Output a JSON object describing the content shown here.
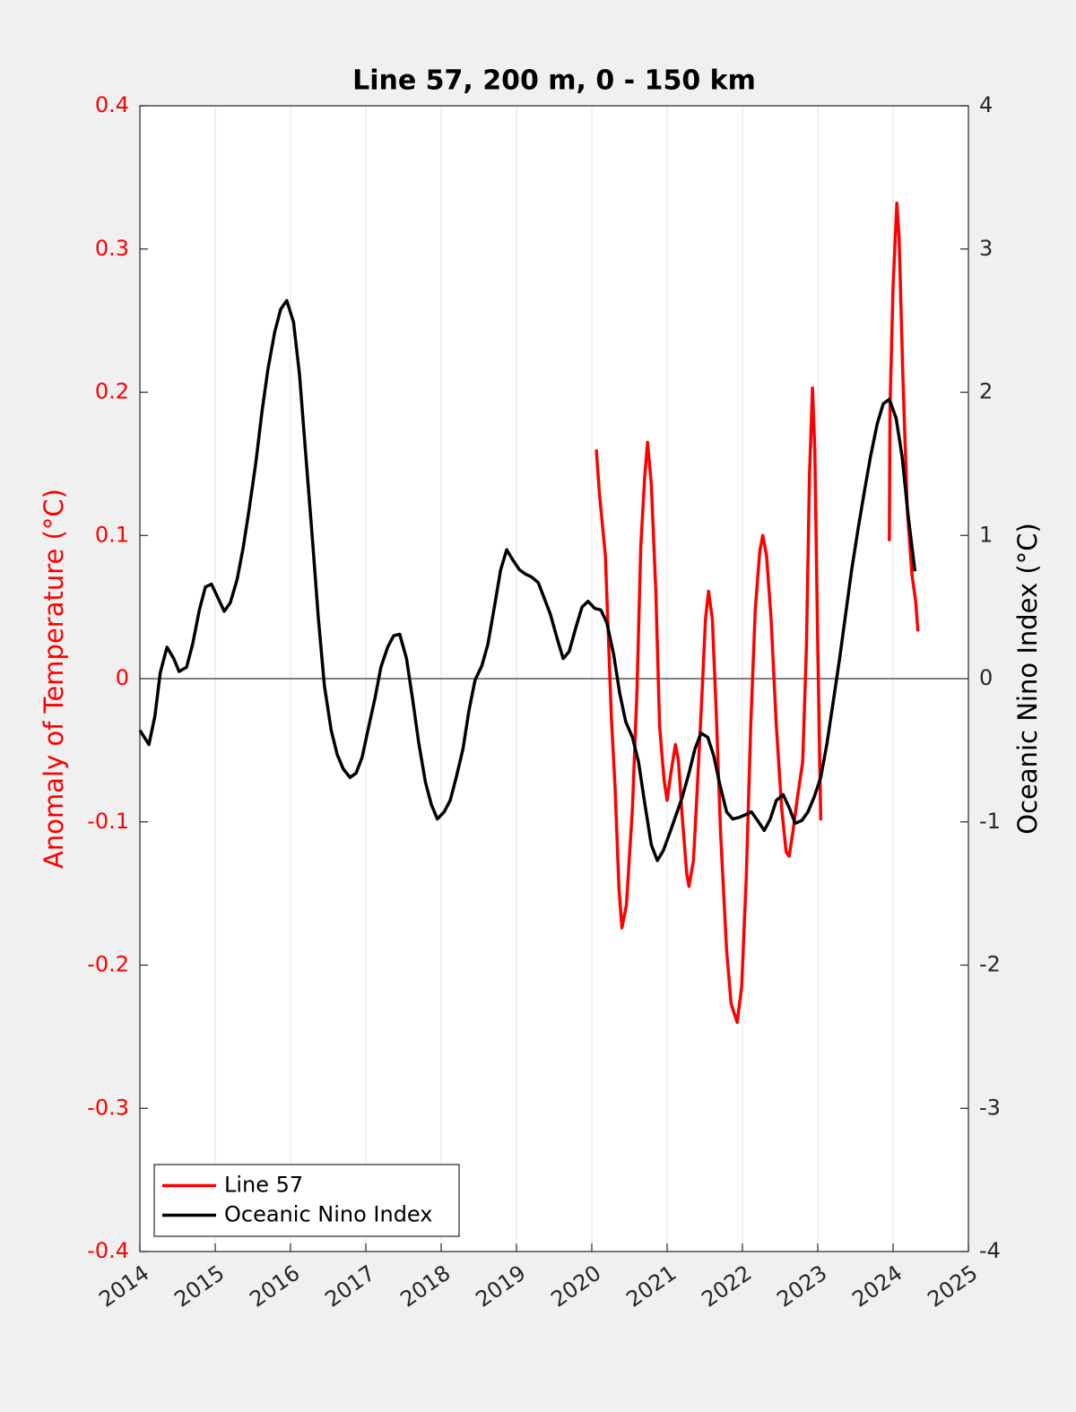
{
  "chart_data": {
    "type": "line",
    "title": "Line 57, 200 m, 0 - 150 km",
    "ylabel": "Anomaly of Temperature (°C)",
    "y2label": "Oceanic Nino Index (°C)",
    "xlim": [
      2014,
      2025
    ],
    "xticks": [
      2014,
      2015,
      2016,
      2017,
      2018,
      2019,
      2020,
      2021,
      2022,
      2023,
      2024,
      2025
    ],
    "ylim": [
      -0.4,
      0.4
    ],
    "yticks": [
      -0.4,
      -0.3,
      -0.2,
      -0.1,
      0,
      0.1,
      0.2,
      0.3,
      0.4
    ],
    "y2lim": [
      -4,
      4
    ],
    "y2ticks": [
      -4,
      -3,
      -2,
      -1,
      0,
      1,
      2,
      3,
      4
    ],
    "grid": true,
    "legend": "southwest",
    "series": [
      {
        "name": "Line 57",
        "color": "#ff0000",
        "x": [
          2020.06,
          2020.1,
          2020.18,
          2020.26,
          2020.31,
          2020.36,
          2020.4,
          2020.46,
          2020.54,
          2020.6,
          2020.65,
          2020.7,
          2020.74,
          2020.79,
          2020.85,
          2020.9,
          2020.96,
          2021.0,
          2021.05,
          2021.11,
          2021.15,
          2021.2,
          2021.26,
          2021.29,
          2021.35,
          2021.4,
          2021.46,
          2021.51,
          2021.55,
          2021.6,
          2021.65,
          2021.71,
          2021.79,
          2021.85,
          2021.93,
          2021.99,
          2022.05,
          2022.11,
          2022.17,
          2022.23,
          2022.27,
          2022.32,
          2022.38,
          2022.45,
          2022.52,
          2022.58,
          2022.62,
          2022.67,
          2022.73,
          2022.8,
          2022.85,
          2022.89,
          2022.93,
          2022.96,
          2023.0,
          2023.04,
          null,
          2023.95,
          2023.96,
          2024.0,
          2024.05,
          2024.08,
          2024.13,
          2024.19,
          2024.25,
          2024.3,
          2024.33
        ],
        "values": [
          0.16,
          0.13,
          0.086,
          -0.027,
          -0.077,
          -0.146,
          -0.174,
          -0.158,
          -0.09,
          -0.008,
          0.092,
          0.139,
          0.165,
          0.136,
          0.061,
          -0.033,
          -0.071,
          -0.085,
          -0.066,
          -0.046,
          -0.057,
          -0.096,
          -0.136,
          -0.145,
          -0.127,
          -0.077,
          -0.014,
          0.042,
          0.061,
          0.042,
          -0.021,
          -0.108,
          -0.19,
          -0.227,
          -0.24,
          -0.215,
          -0.14,
          -0.033,
          0.048,
          0.089,
          0.1,
          0.086,
          0.042,
          -0.033,
          -0.09,
          -0.121,
          -0.124,
          -0.107,
          -0.083,
          -0.058,
          0.023,
          0.142,
          0.203,
          0.161,
          0.023,
          -0.099,
          null,
          0.096,
          0.192,
          0.274,
          0.332,
          0.308,
          0.211,
          0.117,
          0.073,
          0.054,
          0.033
        ]
      },
      {
        "name": "Oceanic Nino Index",
        "color": "#000000",
        "axis": "y2",
        "x": [
          2014.0,
          2014.12,
          2014.2,
          2014.27,
          2014.36,
          2014.45,
          2014.52,
          2014.62,
          2014.7,
          2014.79,
          2014.87,
          2014.95,
          2015.04,
          2015.12,
          2015.2,
          2015.29,
          2015.37,
          2015.45,
          2015.54,
          2015.62,
          2015.7,
          2015.79,
          2015.87,
          2015.95,
          2016.04,
          2016.12,
          2016.2,
          2016.29,
          2016.37,
          2016.45,
          2016.54,
          2016.62,
          2016.7,
          2016.79,
          2016.87,
          2016.95,
          2017.04,
          2017.12,
          2017.2,
          2017.29,
          2017.37,
          2017.45,
          2017.54,
          2017.62,
          2017.7,
          2017.79,
          2017.87,
          2017.95,
          2018.04,
          2018.12,
          2018.2,
          2018.29,
          2018.37,
          2018.45,
          2018.54,
          2018.62,
          2018.7,
          2018.79,
          2018.87,
          2018.95,
          2019.04,
          2019.12,
          2019.2,
          2019.29,
          2019.37,
          2019.45,
          2019.54,
          2019.62,
          2019.7,
          2019.79,
          2019.87,
          2019.95,
          2020.04,
          2020.12,
          2020.2,
          2020.29,
          2020.37,
          2020.45,
          2020.54,
          2020.62,
          2020.7,
          2020.79,
          2020.87,
          2020.95,
          2021.04,
          2021.12,
          2021.2,
          2021.29,
          2021.37,
          2021.45,
          2021.54,
          2021.62,
          2021.7,
          2021.79,
          2021.87,
          2021.95,
          2022.04,
          2022.12,
          2022.2,
          2022.29,
          2022.37,
          2022.45,
          2022.54,
          2022.62,
          2022.7,
          2022.79,
          2022.87,
          2022.95,
          2023.04,
          2023.12,
          2023.2,
          2023.29,
          2023.37,
          2023.45,
          2023.54,
          2023.62,
          2023.7,
          2023.79,
          2023.87,
          2023.95,
          2024.04,
          2024.12,
          2024.2,
          2024.29
        ],
        "values": [
          -0.36,
          -0.46,
          -0.26,
          0.04,
          0.22,
          0.14,
          0.05,
          0.08,
          0.24,
          0.48,
          0.64,
          0.66,
          0.56,
          0.47,
          0.53,
          0.69,
          0.91,
          1.18,
          1.51,
          1.86,
          2.16,
          2.42,
          2.58,
          2.64,
          2.49,
          2.12,
          1.58,
          0.98,
          0.42,
          -0.05,
          -0.36,
          -0.53,
          -0.63,
          -0.69,
          -0.66,
          -0.55,
          -0.33,
          -0.14,
          0.08,
          0.22,
          0.3,
          0.31,
          0.14,
          -0.14,
          -0.44,
          -0.72,
          -0.88,
          -0.98,
          -0.93,
          -0.85,
          -0.69,
          -0.49,
          -0.22,
          -0.01,
          0.09,
          0.24,
          0.48,
          0.76,
          0.9,
          0.83,
          0.76,
          0.73,
          0.71,
          0.67,
          0.56,
          0.45,
          0.28,
          0.14,
          0.19,
          0.36,
          0.5,
          0.54,
          0.49,
          0.48,
          0.39,
          0.17,
          -0.1,
          -0.3,
          -0.41,
          -0.58,
          -0.86,
          -1.16,
          -1.27,
          -1.2,
          -1.07,
          -0.95,
          -0.83,
          -0.66,
          -0.49,
          -0.38,
          -0.41,
          -0.54,
          -0.74,
          -0.93,
          -0.98,
          -0.97,
          -0.95,
          -0.93,
          -0.99,
          -1.06,
          -0.98,
          -0.85,
          -0.81,
          -0.9,
          -1.01,
          -0.99,
          -0.93,
          -0.83,
          -0.69,
          -0.46,
          -0.18,
          0.14,
          0.45,
          0.76,
          1.06,
          1.31,
          1.55,
          1.78,
          1.92,
          1.95,
          1.82,
          1.55,
          1.14,
          0.75
        ]
      }
    ]
  }
}
